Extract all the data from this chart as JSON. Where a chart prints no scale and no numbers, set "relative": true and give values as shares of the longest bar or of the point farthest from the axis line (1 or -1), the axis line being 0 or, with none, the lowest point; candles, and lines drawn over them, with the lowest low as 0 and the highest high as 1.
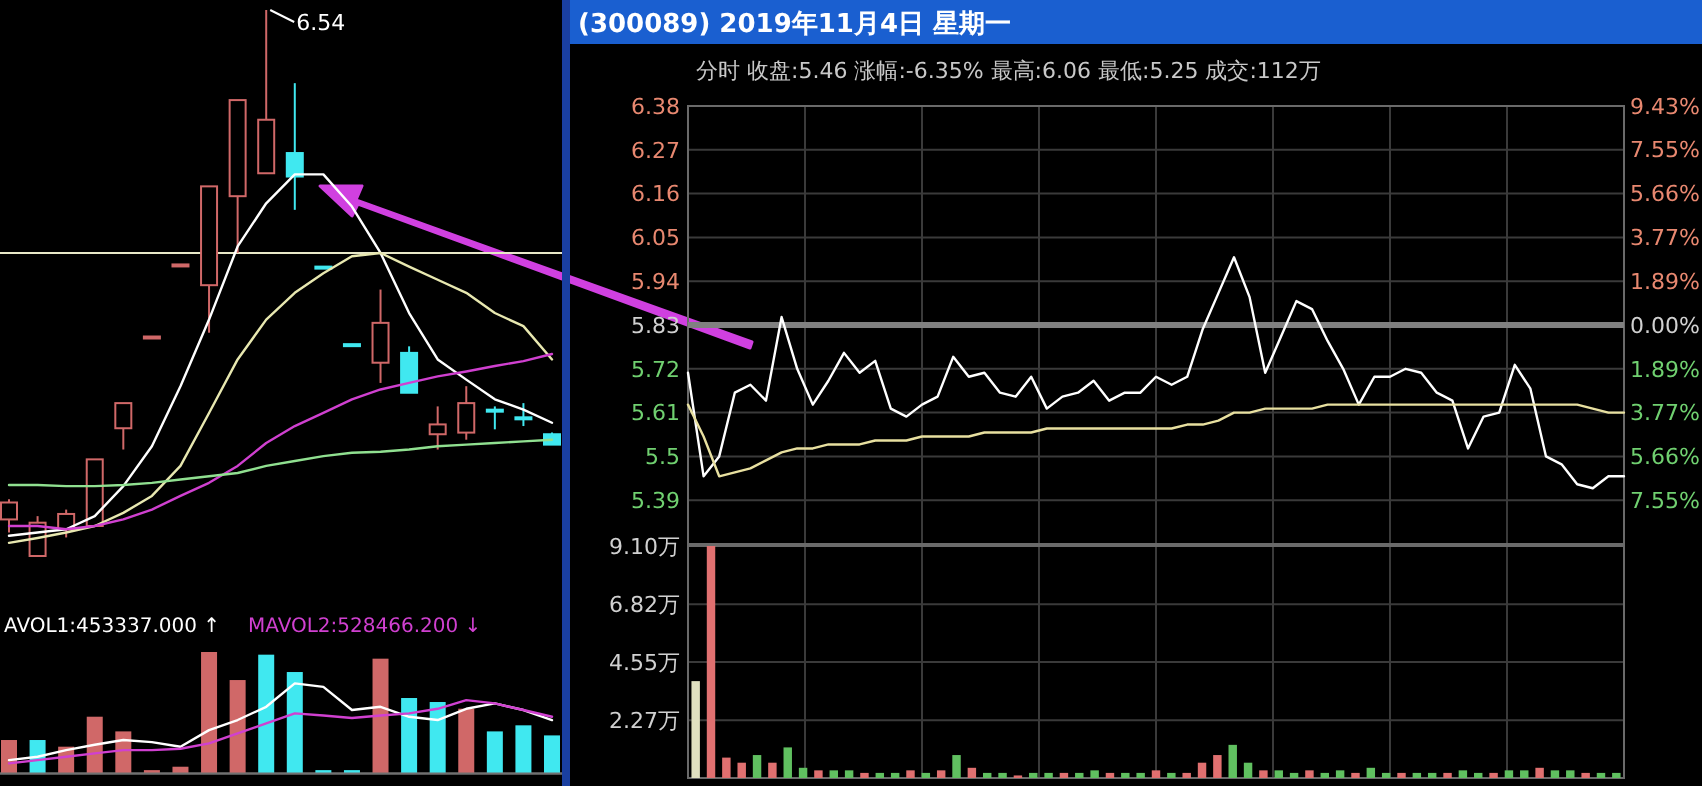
{
  "chart_data": [
    {
      "type": "candlestick",
      "relative": true,
      "categories": [
        null,
        null,
        null,
        null,
        null,
        null,
        null,
        null,
        null,
        null,
        null,
        null,
        null,
        null,
        null,
        null,
        null,
        null,
        null,
        null
      ],
      "ohlc": [
        [
          0.067,
          0.104,
          0.043,
          0.098
        ],
        [
          0,
          0.073,
          0,
          0.061
        ],
        [
          0.049,
          0.085,
          0.034,
          0.077
        ],
        [
          0.055,
          0.177,
          0.055,
          0.177
        ],
        [
          0.234,
          0.28,
          0.195,
          0.28
        ],
        [
          0.402,
          0.402,
          0.402,
          0.402
        ],
        [
          0.534,
          0.534,
          0.534,
          0.534
        ],
        [
          0.496,
          0.677,
          0.409,
          0.677
        ],
        [
          0.659,
          0.835,
          0.555,
          0.835
        ],
        [
          0.701,
          1,
          0.701,
          0.799
        ],
        [
          0.738,
          0.866,
          0.634,
          0.695
        ],
        [
          0.53,
          0.53,
          0.53,
          0.53
        ],
        [
          0.388,
          0.388,
          0.388,
          0.388
        ],
        [
          0.354,
          0.488,
          0.317,
          0.427
        ],
        [
          0.372,
          0.384,
          0.299,
          0.299
        ],
        [
          0.223,
          0.274,
          0.195,
          0.241
        ],
        [
          0.226,
          0.311,
          0.213,
          0.28
        ],
        [
          0.268,
          0.274,
          0.232,
          0.266
        ],
        [
          0.254,
          0.28,
          0.238,
          0.251
        ],
        [
          0.223,
          0.226,
          0.204,
          0.204
        ]
      ],
      "colors": [
        "#d06868",
        "#d06868",
        "#d06868",
        "#d06868",
        "#d06868",
        "#d06868",
        "#d06868",
        "#d06868",
        "#d06868",
        "#d06868",
        "#40e8f0",
        "#40e8f0",
        "#40e8f0",
        "#d06868",
        "#40e8f0",
        "#d06868",
        "#d06868",
        "#40e8f0",
        "#40e8f0",
        "#40e8f0"
      ],
      "series": [
        {
          "type": "line",
          "color": "#ffffff",
          "values": [
            0.037,
            0.043,
            0.049,
            0.073,
            0.128,
            0.201,
            0.311,
            0.433,
            0.567,
            0.646,
            0.699,
            0.699,
            0.64,
            0.555,
            0.445,
            0.36,
            0.323,
            0.287,
            0.268,
            0.244
          ]
        },
        {
          "type": "line",
          "color": "#e8e8b0",
          "values": [
            0.024,
            0.033,
            0.043,
            0.055,
            0.079,
            0.11,
            0.165,
            0.262,
            0.36,
            0.433,
            0.482,
            0.518,
            0.549,
            0.555,
            0.53,
            0.506,
            0.482,
            0.445,
            0.421,
            0.36
          ]
        },
        {
          "type": "line",
          "color": "#d040d0",
          "values": [
            0.055,
            0.055,
            0.049,
            0.055,
            0.067,
            0.085,
            0.11,
            0.134,
            0.165,
            0.207,
            0.238,
            0.262,
            0.287,
            0.305,
            0.317,
            0.329,
            0.338,
            0.348,
            0.357,
            0.37
          ]
        },
        {
          "type": "line",
          "color": "#90e090",
          "values": [
            0.13,
            0.13,
            0.128,
            0.128,
            0.13,
            0.134,
            0.14,
            0.146,
            0.152,
            0.165,
            0.174,
            0.183,
            0.189,
            0.191,
            0.195,
            0.201,
            0.204,
            0.207,
            0.21,
            0.213
          ]
        }
      ],
      "ref_lines": [
        {
          "axis": "y",
          "value": 0.555,
          "color": "#e8e8c8"
        }
      ],
      "annotations": [
        "6.54"
      ]
    },
    {
      "type": "bar",
      "relative": true,
      "categories": [
        null,
        null,
        null,
        null,
        null,
        null,
        null,
        null,
        null,
        null,
        null,
        null,
        null,
        null,
        null,
        null,
        null,
        null,
        null,
        null
      ],
      "values": [
        0.275,
        0.275,
        0.22,
        0.467,
        0.346,
        0.027,
        0.055,
        1,
        0.769,
        0.978,
        0.835,
        0.027,
        0.027,
        0.945,
        0.621,
        0.588,
        0.533,
        0.346,
        0.396,
        0.313
      ],
      "colors": [
        "#d06868",
        "#40e8f0",
        "#d06868",
        "#d06868",
        "#d06868",
        "#d06868",
        "#d06868",
        "#d06868",
        "#d06868",
        "#40e8f0",
        "#40e8f0",
        "#40e8f0",
        "#40e8f0",
        "#d06868",
        "#40e8f0",
        "#40e8f0",
        "#d06868",
        "#40e8f0",
        "#40e8f0",
        "#40e8f0"
      ]
    },
    {
      "type": "line",
      "relative": true,
      "categories": [
        null,
        null,
        null,
        null,
        null,
        null,
        null,
        null,
        null,
        null,
        null,
        null,
        null,
        null,
        null,
        null,
        null,
        null,
        null,
        null
      ],
      "series": [
        {
          "color": "#ffffff",
          "values": [
            0.148,
            0.185,
            0.259,
            0.318,
            0.371,
            0.348,
            0.296,
            0.481,
            0.593,
            0.74,
            1,
            0.962,
            0.704,
            0.74,
            0.629,
            0.593,
            0.718,
            0.778,
            0.704,
            0.593
          ]
        },
        {
          "color": "#d040d0",
          "values": [
            0.111,
            0.148,
            0.185,
            0.222,
            0.259,
            0.259,
            0.274,
            0.333,
            0.445,
            0.555,
            0.667,
            0.644,
            0.615,
            0.644,
            0.667,
            0.718,
            0.814,
            0.778,
            0.704,
            0.629
          ]
        }
      ],
      "annotations": [
        "AVOL1:453337.000 ↑",
        "MAVOL2:528466.200 ↓"
      ]
    },
    {
      "type": "line",
      "title": "(300089) 2019年11月4日 星期一",
      "subtitle": "分时 收盘:5.46 涨幅:-6.35% 最高:6.06 最低:5.25 成交:112万",
      "categories": [
        null,
        null,
        null,
        null,
        null,
        null,
        null,
        null,
        null,
        null,
        null,
        null,
        null,
        null,
        null,
        null,
        null,
        null,
        null,
        null,
        null,
        null,
        null,
        null,
        null,
        null,
        null,
        null,
        null,
        null,
        null,
        null,
        null,
        null,
        null,
        null,
        null,
        null,
        null,
        null,
        null,
        null,
        null,
        null,
        null,
        null,
        null,
        null,
        null,
        null,
        null,
        null,
        null,
        null,
        null,
        null,
        null,
        null,
        null,
        null,
        null
      ],
      "series": [
        {
          "color": "#ffffff",
          "values": [
            5.71,
            5.45,
            5.5,
            5.66,
            5.68,
            5.64,
            5.85,
            5.72,
            5.63,
            5.69,
            5.76,
            5.71,
            5.74,
            5.62,
            5.6,
            5.63,
            5.65,
            5.75,
            5.7,
            5.71,
            5.66,
            5.65,
            5.7,
            5.62,
            5.65,
            5.66,
            5.69,
            5.64,
            5.66,
            5.66,
            5.7,
            5.68,
            5.7,
            5.82,
            5.91,
            6,
            5.9,
            5.71,
            5.8,
            5.89,
            5.87,
            5.79,
            5.72,
            5.63,
            5.7,
            5.7,
            5.72,
            5.71,
            5.66,
            5.64,
            5.52,
            5.6,
            5.61,
            5.73,
            5.67,
            5.5,
            5.48,
            5.43,
            5.42,
            5.45,
            5.45
          ]
        },
        {
          "color": "#e8e0a0",
          "values": [
            5.63,
            5.55,
            5.45,
            5.46,
            5.47,
            5.49,
            5.51,
            5.52,
            5.52,
            5.53,
            5.53,
            5.53,
            5.54,
            5.54,
            5.54,
            5.55,
            5.55,
            5.55,
            5.55,
            5.56,
            5.56,
            5.56,
            5.56,
            5.57,
            5.57,
            5.57,
            5.57,
            5.57,
            5.57,
            5.57,
            5.57,
            5.57,
            5.58,
            5.58,
            5.59,
            5.61,
            5.61,
            5.62,
            5.62,
            5.62,
            5.62,
            5.63,
            5.63,
            5.63,
            5.63,
            5.63,
            5.63,
            5.63,
            5.63,
            5.63,
            5.63,
            5.63,
            5.63,
            5.63,
            5.63,
            5.63,
            5.63,
            5.63,
            5.62,
            5.61,
            5.61
          ]
        }
      ],
      "ylim": [
        5.28,
        6.38
      ],
      "yticks": [
        6.38,
        6.27,
        6.16,
        6.05,
        5.94,
        5.83,
        5.72,
        5.61,
        5.5,
        5.39
      ],
      "y2lim": [
        -9.43,
        9.43
      ],
      "y2ticks": [
        {
          "value": 9.43,
          "label": "9.43%"
        },
        {
          "value": 7.55,
          "label": "7.55%"
        },
        {
          "value": 5.66,
          "label": "5.66%"
        },
        {
          "value": 3.77,
          "label": "3.77%"
        },
        {
          "value": 1.89,
          "label": "1.89%"
        },
        {
          "value": 0,
          "label": "0.00%"
        },
        {
          "value": -1.89,
          "label": "1.89%"
        },
        {
          "value": -3.77,
          "label": "3.77%"
        },
        {
          "value": -5.66,
          "label": "5.66%"
        },
        {
          "value": -7.55,
          "label": "7.55%"
        }
      ],
      "ref_lines": [
        {
          "axis": "y",
          "value": 5.83,
          "color": "#808080"
        }
      ],
      "grid": true,
      "tick_labels": "y"
    },
    {
      "type": "bar",
      "categories": [
        null,
        null,
        null,
        null,
        null,
        null,
        null,
        null,
        null,
        null,
        null,
        null,
        null,
        null,
        null,
        null,
        null,
        null,
        null,
        null,
        null,
        null,
        null,
        null,
        null,
        null,
        null,
        null,
        null,
        null,
        null,
        null,
        null,
        null,
        null,
        null,
        null,
        null,
        null,
        null,
        null,
        null,
        null,
        null,
        null,
        null,
        null,
        null,
        null,
        null,
        null,
        null,
        null,
        null,
        null,
        null,
        null,
        null,
        null,
        null,
        null
      ],
      "values": [
        3.8,
        9.1,
        0.8,
        0.6,
        0.9,
        0.6,
        1.2,
        0.4,
        0.3,
        0.3,
        0.3,
        0.2,
        0.2,
        0.2,
        0.3,
        0.2,
        0.3,
        0.9,
        0.4,
        0.2,
        0.2,
        0.1,
        0.2,
        0.2,
        0.2,
        0.2,
        0.3,
        0.2,
        0.2,
        0.2,
        0.3,
        0.2,
        0.2,
        0.6,
        0.9,
        1.3,
        0.6,
        0.3,
        0.3,
        0.2,
        0.3,
        0.2,
        0.3,
        0.2,
        0.4,
        0.2,
        0.2,
        0.2,
        0.2,
        0.2,
        0.3,
        0.2,
        0.2,
        0.3,
        0.3,
        0.4,
        0.3,
        0.3,
        0.2,
        0.2,
        0.2
      ],
      "colors": [
        "#e0e0c0",
        "#e07070",
        "#e07070",
        "#e07070",
        "#60c060",
        "#e07070",
        "#60c060",
        "#60c060",
        "#e07070",
        "#60c060",
        "#60c060",
        "#e07070",
        "#60c060",
        "#60c060",
        "#e07070",
        "#60c060",
        "#e07070",
        "#60c060",
        "#e07070",
        "#60c060",
        "#60c060",
        "#e07070",
        "#60c060",
        "#60c060",
        "#e07070",
        "#60c060",
        "#60c060",
        "#e07070",
        "#60c060",
        "#60c060",
        "#e07070",
        "#60c060",
        "#e07070",
        "#e07070",
        "#e07070",
        "#60c060",
        "#60c060",
        "#e07070",
        "#60c060",
        "#60c060",
        "#e07070",
        "#60c060",
        "#60c060",
        "#e07070",
        "#60c060",
        "#60c060",
        "#e07070",
        "#60c060",
        "#60c060",
        "#e07070",
        "#60c060",
        "#60c060",
        "#e07070",
        "#60c060",
        "#60c060",
        "#e07070",
        "#60c060",
        "#60c060",
        "#e07070",
        "#60c060",
        "#60c060"
      ],
      "ylim": [
        0,
        9.1
      ],
      "yticks": [
        {
          "value": 9.1,
          "label": "9.10万"
        },
        {
          "value": 6.82,
          "label": "6.82万"
        },
        {
          "value": 4.55,
          "label": "4.55万"
        },
        {
          "value": 2.27,
          "label": "2.27万"
        }
      ],
      "grid": true,
      "tick_labels": "y"
    }
  ]
}
